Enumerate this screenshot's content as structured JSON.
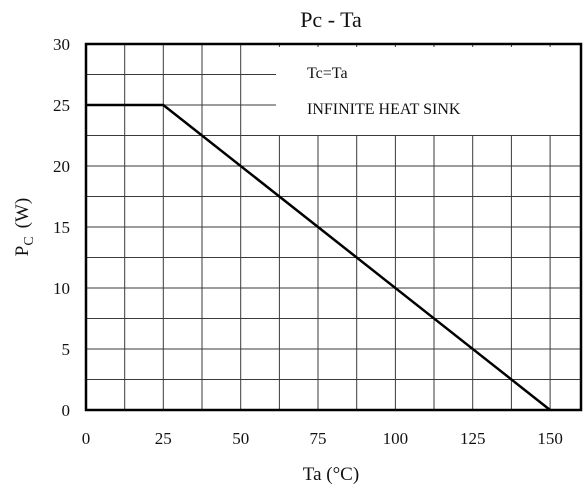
{
  "chart_data": {
    "type": "line",
    "title": "Pc - Ta",
    "xlabel": "Ta (°C)",
    "ylabel": {
      "main": "P",
      "sub": "C",
      "unit": "(W)"
    },
    "xlim": [
      0,
      160
    ],
    "ylim": [
      0,
      30
    ],
    "x_ticks": [
      0,
      25,
      50,
      75,
      100,
      125,
      150
    ],
    "y_ticks": [
      0,
      5,
      10,
      15,
      20,
      25,
      30
    ],
    "x_grid_step": 12.5,
    "y_grid_step": 2.5,
    "grid": true,
    "series": [
      {
        "x": [
          0,
          25,
          150
        ],
        "y": [
          25,
          25,
          0
        ],
        "color": "#000000"
      }
    ],
    "annotations": [
      {
        "text": "Tc=Ta"
      },
      {
        "text": "INFINITE HEAT SINK"
      }
    ]
  }
}
